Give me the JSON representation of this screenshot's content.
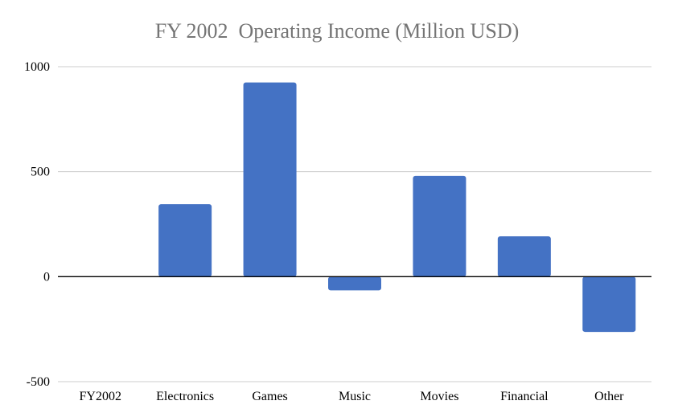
{
  "chart_data": {
    "type": "bar",
    "title": "FY 2002  Operating Income (Million USD)",
    "xlabel": "",
    "ylabel": "",
    "categories": [
      "FY2002",
      "Electronics",
      "Games",
      "Music",
      "Movies",
      "Financial",
      "Other"
    ],
    "values": [
      null,
      345,
      925,
      -65,
      480,
      192,
      -263
    ],
    "ylim": [
      -500,
      1000
    ],
    "yticks": [
      -500,
      0,
      500,
      1000
    ],
    "ytick_labels": [
      "-500",
      "0",
      "500",
      "1000"
    ],
    "grid": true,
    "legend": "none",
    "colors": {
      "bar": "#4472c4",
      "grid": "#cccccc",
      "zero_line": "#000000",
      "title": "#757575"
    }
  }
}
